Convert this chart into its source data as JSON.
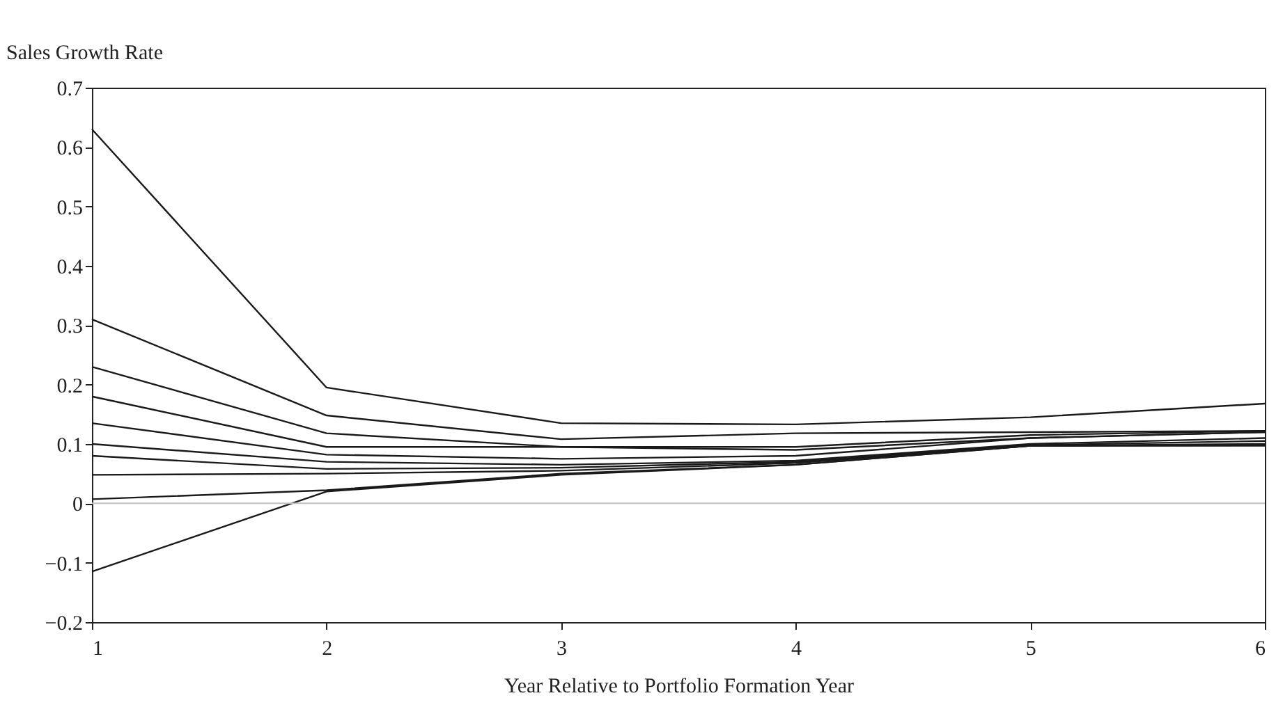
{
  "chart_data": {
    "type": "line",
    "ylabel": "Sales Growth Rate",
    "xlabel": "Year Relative to Portfolio Formation Year",
    "x": [
      1,
      2,
      3,
      4,
      5,
      6
    ],
    "xlim": [
      1,
      6
    ],
    "xticks": [
      1,
      2,
      3,
      4,
      5,
      6
    ],
    "ylim": [
      -0.2,
      0.7
    ],
    "yticks": [
      {
        "value": -0.2,
        "label": "−0.2"
      },
      {
        "value": -0.1,
        "label": "−0.1"
      },
      0,
      0.1,
      0.2,
      0.3,
      0.4,
      0.5,
      0.6,
      0.7
    ],
    "grid": false,
    "legend": false,
    "marker": "none",
    "line_style": "solid",
    "ref_lines": [
      {
        "axis": "y",
        "value": 0,
        "color": "#c0c0c0"
      }
    ],
    "series": [
      {
        "color": "#1a1a1a",
        "values": [
          0.63,
          0.195,
          0.135,
          0.133,
          0.145,
          0.168
        ]
      },
      {
        "color": "#1a1a1a",
        "values": [
          0.31,
          0.148,
          0.108,
          0.118,
          0.12,
          0.122
        ]
      },
      {
        "color": "#1a1a1a",
        "values": [
          0.23,
          0.118,
          0.095,
          0.095,
          0.115,
          0.122
        ]
      },
      {
        "color": "#1a1a1a",
        "values": [
          0.18,
          0.095,
          0.095,
          0.09,
          0.11,
          0.12
        ]
      },
      {
        "color": "#1a1a1a",
        "values": [
          0.135,
          0.082,
          0.075,
          0.08,
          0.11,
          0.12
        ]
      },
      {
        "color": "#1a1a1a",
        "values": [
          0.1,
          0.07,
          0.065,
          0.072,
          0.1,
          0.11
        ]
      },
      {
        "color": "#1a1a1a",
        "values": [
          0.08,
          0.058,
          0.06,
          0.07,
          0.098,
          0.105
        ]
      },
      {
        "color": "#1a1a1a",
        "values": [
          0.048,
          0.05,
          0.055,
          0.068,
          0.097,
          0.1
        ]
      },
      {
        "color": "#1a1a1a",
        "values": [
          0.007,
          0.022,
          0.05,
          0.065,
          0.097,
          0.098
        ]
      },
      {
        "color": "#1a1a1a",
        "values": [
          -0.115,
          0.02,
          0.048,
          0.065,
          0.097,
          0.097
        ]
      }
    ]
  }
}
